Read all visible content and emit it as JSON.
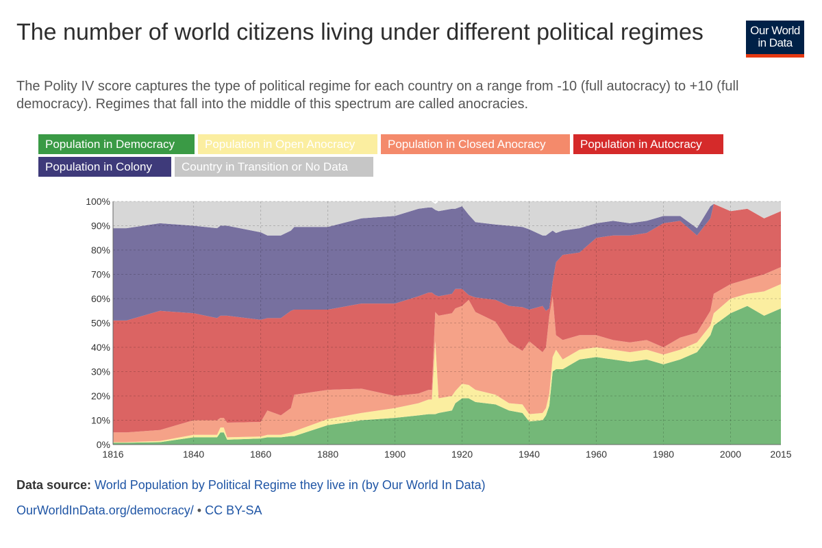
{
  "header": {
    "title": "The number of world citizens living under different political regimes",
    "subtitle": "The Polity IV score captures the type of political regime for each country on a range from -10 (full autocracy) to +10 (full democracy). Regimes that fall into the middle of this spectrum are called anocracies.",
    "logo_line1": "Our World",
    "logo_line2": "in Data"
  },
  "legend": [
    {
      "label": "Population in Democracy",
      "color": "#3a9a45"
    },
    {
      "label": "Population in Open Anocracy",
      "color": "#fbeea0"
    },
    {
      "label": "Population in Closed Anocracy",
      "color": "#f48a6b"
    },
    {
      "label": "Population in Autocracy",
      "color": "#d52a2a"
    },
    {
      "label": "Population in Colony",
      "color": "#3e3a7a"
    },
    {
      "label": "Country in Transition or No Data",
      "color": "#c6c6c6"
    }
  ],
  "footer": {
    "source_label": "Data source:",
    "source_text": "World Population by Political Regime they live in (by Our World In Data)",
    "url": "OurWorldInData.org/democracy/",
    "license": "CC BY-SA",
    "separator": " • "
  },
  "chart_data": {
    "type": "area",
    "stacked": true,
    "title": "The number of world citizens living under different political regimes",
    "xlabel": "",
    "ylabel": "",
    "xlim": [
      1816,
      2015
    ],
    "ylim": [
      0,
      100
    ],
    "x_ticks": [
      1816,
      1840,
      1860,
      1880,
      1900,
      1920,
      1940,
      1960,
      1980,
      2000,
      2015
    ],
    "y_ticks": [
      "0%",
      "10%",
      "20%",
      "30%",
      "40%",
      "50%",
      "60%",
      "70%",
      "80%",
      "90%",
      "100%"
    ],
    "x": [
      1816,
      1820,
      1830,
      1840,
      1847,
      1848,
      1849,
      1850,
      1860,
      1862,
      1866,
      1869,
      1870,
      1880,
      1890,
      1900,
      1907,
      1910,
      1911,
      1912,
      1913,
      1917,
      1918,
      1920,
      1922,
      1924,
      1930,
      1934,
      1938,
      1940,
      1944,
      1945,
      1946,
      1947,
      1948,
      1950,
      1955,
      1960,
      1965,
      1970,
      1975,
      1980,
      1985,
      1990,
      1994,
      1995,
      2000,
      2005,
      2010,
      2015
    ],
    "series": [
      {
        "name": "Population in Democracy",
        "color": "#74b878",
        "values": [
          0.8,
          0.8,
          1,
          3,
          3,
          5,
          5,
          2,
          2.5,
          3,
          3,
          3.5,
          3.5,
          8,
          10,
          11,
          12,
          12.5,
          12.5,
          12.5,
          13,
          14,
          17,
          19,
          19,
          17.5,
          16.5,
          14,
          13,
          9.5,
          10,
          12,
          16,
          30,
          31,
          31,
          35,
          36,
          35,
          34,
          35,
          33,
          35,
          38,
          45,
          49,
          54,
          57,
          53,
          56
        ]
      },
      {
        "name": "Population in Open Anocracy",
        "color": "#fbeea0",
        "values": [
          0.2,
          0.2,
          0.5,
          1,
          1,
          2,
          2,
          1,
          0.8,
          1,
          1,
          1.5,
          2,
          2.5,
          3,
          4,
          5,
          6,
          6,
          30,
          6,
          6,
          5,
          6,
          5.5,
          5,
          4,
          3,
          3.5,
          3,
          3,
          3,
          5,
          6,
          8,
          4,
          4,
          4,
          4,
          4,
          4,
          4,
          4,
          4,
          4,
          5,
          6,
          5,
          10,
          10
        ]
      },
      {
        "name": "Population in Closed Anocracy",
        "color": "#f5a288",
        "values": [
          4,
          4,
          4.5,
          6,
          6,
          4,
          4,
          6,
          6,
          10,
          8,
          10,
          15,
          12,
          10,
          5,
          4,
          4,
          4,
          12,
          34,
          34,
          34,
          32,
          35,
          32,
          30,
          25,
          22,
          30,
          25,
          25,
          32,
          25,
          6,
          8,
          6,
          5,
          4,
          4,
          4,
          3,
          5,
          4,
          6,
          8,
          6,
          6,
          7,
          7
        ]
      },
      {
        "name": "Population in Autocracy",
        "color": "#db6463",
        "values": [
          46,
          46,
          49,
          44,
          42,
          42,
          42,
          44,
          42,
          38,
          40,
          40,
          35,
          33,
          35,
          38,
          40,
          40,
          40,
          7,
          8,
          8,
          8,
          7,
          2,
          6,
          9,
          15,
          18,
          13,
          19,
          15,
          3,
          6,
          30,
          35,
          34,
          40,
          43,
          44,
          44,
          51,
          48,
          40,
          38,
          37,
          30,
          29,
          23,
          23
        ]
      },
      {
        "name": "Population in Colony",
        "color": "#77709f",
        "values": [
          38,
          38,
          36,
          36,
          37,
          37,
          37,
          37,
          36,
          34,
          34,
          33,
          34,
          34,
          35,
          36,
          36,
          35,
          35,
          35,
          35,
          35,
          33,
          34,
          33,
          31,
          31,
          33,
          33,
          33,
          29,
          31,
          31,
          21,
          12,
          10,
          10,
          6,
          6,
          5,
          5,
          3,
          2,
          3,
          5,
          0,
          0,
          0,
          0,
          0
        ]
      },
      {
        "name": "Country in Transition or No Data",
        "color": "#d7d7d7",
        "values": [
          11,
          11,
          9,
          10,
          11,
          10,
          10,
          10,
          12.7,
          14,
          14,
          12,
          10.5,
          10.5,
          7,
          6,
          3,
          2.5,
          2.5,
          2.5,
          4,
          3,
          3,
          2,
          5.5,
          8.5,
          9.5,
          10,
          10.5,
          11.5,
          14,
          14,
          13,
          12,
          13,
          12,
          11,
          9,
          8,
          9,
          8,
          6,
          6,
          11,
          2,
          1,
          4,
          3,
          7,
          4
        ]
      }
    ]
  }
}
